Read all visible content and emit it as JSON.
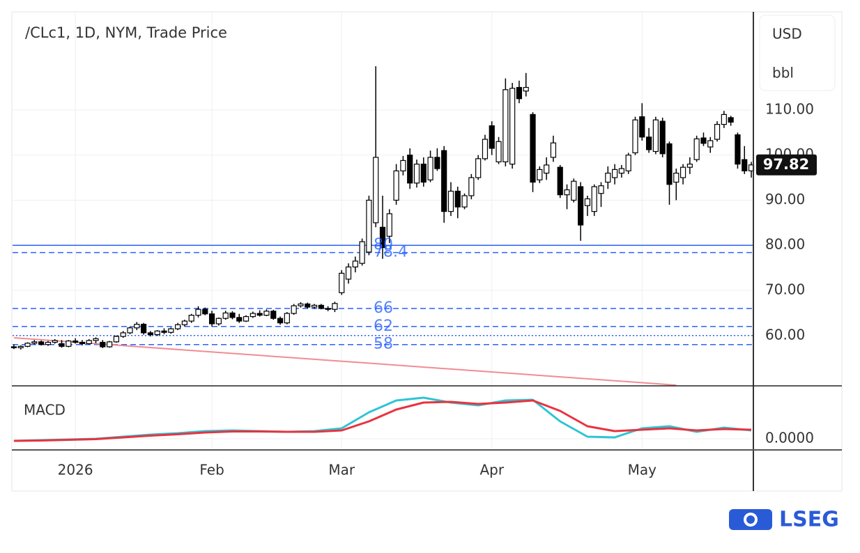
{
  "chart_data": {
    "type": "candlestick",
    "title": "/CLc1, 1D, NYM, Trade Price",
    "unit": "USD",
    "unit_sub": "bbl",
    "brand": "LSEG",
    "up_color": "#ffffff",
    "down_color": "#000000",
    "wick_color": "#000000",
    "grid": true,
    "ylim": [
      49,
      131.6
    ],
    "yticks": [
      {
        "value": 60,
        "label": "60.00"
      },
      {
        "value": 70,
        "label": "70.00"
      },
      {
        "value": 80,
        "label": "80.00"
      },
      {
        "value": 90,
        "label": "90.00"
      },
      {
        "value": 100,
        "label": "100.00"
      },
      {
        "value": 110,
        "label": "110.00"
      }
    ],
    "xlim": [
      -0.2,
      108.2
    ],
    "xticks": [
      {
        "value": 9,
        "label": "2026"
      },
      {
        "value": 29,
        "label": "Feb"
      },
      {
        "value": 48,
        "label": "Mar"
      },
      {
        "value": 70,
        "label": "Apr"
      },
      {
        "value": 92,
        "label": "May"
      }
    ],
    "last_price": 97.82,
    "levels": [
      {
        "value": 80,
        "style": "solid",
        "show_label": true
      },
      {
        "value": 78.4,
        "style": "dashed",
        "show_label": true
      },
      {
        "value": 66,
        "style": "dashed",
        "show_label": true
      },
      {
        "value": 62,
        "style": "dashed",
        "show_label": true
      },
      {
        "value": 60,
        "style": "dotted",
        "show_label": false
      },
      {
        "value": 58,
        "style": "dashed",
        "show_label": true
      }
    ],
    "level_color": "#2962ff",
    "trendline": {
      "x": [
        0,
        97
      ],
      "values": [
        59.5,
        49
      ],
      "color": "#f28b94"
    },
    "candles": [
      [
        57.5,
        58,
        57,
        57.3
      ],
      [
        57.3,
        57.8,
        56.9,
        57.6
      ],
      [
        57.6,
        58.5,
        57.4,
        58.3
      ],
      [
        58.3,
        59,
        58,
        58.6
      ],
      [
        58.6,
        58.9,
        57.8,
        58
      ],
      [
        58,
        58.8,
        57.7,
        58.5
      ],
      [
        58.5,
        59.2,
        58.2,
        58.9
      ],
      [
        58.2,
        59,
        57.3,
        57.6
      ],
      [
        57.6,
        59,
        57.4,
        58.8
      ],
      [
        58.8,
        59.4,
        58.2,
        58.5
      ],
      [
        58.5,
        59,
        57.8,
        58.2
      ],
      [
        58.2,
        59.2,
        58,
        58.9
      ],
      [
        58.9,
        59.6,
        58.3,
        59.3
      ],
      [
        58.5,
        59,
        57.2,
        57.5
      ],
      [
        57.5,
        58.8,
        57.3,
        58.6
      ],
      [
        58.6,
        60,
        58.4,
        59.8
      ],
      [
        59.8,
        61,
        59.5,
        60.6
      ],
      [
        60.6,
        62,
        60.3,
        61.7
      ],
      [
        61.7,
        63,
        61.2,
        62.5
      ],
      [
        62.5,
        62.8,
        60.2,
        60.6
      ],
      [
        60.6,
        61,
        59.8,
        60.2
      ],
      [
        60.2,
        61.2,
        59.9,
        61
      ],
      [
        61,
        61.6,
        60.3,
        60.7
      ],
      [
        60.7,
        61.8,
        60.4,
        61.5
      ],
      [
        61.5,
        62.8,
        61.2,
        62.4
      ],
      [
        62.4,
        63.5,
        62,
        63.2
      ],
      [
        63.2,
        64.8,
        62.8,
        64.5
      ],
      [
        64.5,
        66.5,
        64,
        65.8
      ],
      [
        65.8,
        66.2,
        64.5,
        64.8
      ],
      [
        64.8,
        65.5,
        62,
        62.6
      ],
      [
        62.6,
        64,
        62.2,
        63.8
      ],
      [
        63.8,
        65.5,
        63.5,
        65
      ],
      [
        65,
        65.4,
        63.6,
        64
      ],
      [
        64,
        64.8,
        62.8,
        63.2
      ],
      [
        63.2,
        64.5,
        63,
        64.2
      ],
      [
        64.2,
        65.3,
        63.9,
        64.9
      ],
      [
        64.9,
        65.6,
        64.2,
        64.5
      ],
      [
        64.5,
        65.8,
        64.3,
        65.4
      ],
      [
        65.4,
        65.7,
        63.5,
        63.8
      ],
      [
        63.8,
        64.2,
        62.4,
        62.8
      ],
      [
        62.8,
        65.2,
        62.5,
        64.9
      ],
      [
        64.9,
        67,
        64.6,
        66.6
      ],
      [
        66.6,
        67.4,
        66.2,
        67
      ],
      [
        67,
        67.3,
        66,
        66.3
      ],
      [
        66.3,
        67,
        65.9,
        66.7
      ],
      [
        66.7,
        67,
        65.8,
        66
      ],
      [
        66,
        66.5,
        65.4,
        65.8
      ],
      [
        65.8,
        67.5,
        65.2,
        67.1
      ],
      [
        69.5,
        74.5,
        69,
        73.8
      ],
      [
        72.5,
        76,
        71.5,
        75.2
      ],
      [
        75.2,
        77.5,
        74,
        76.5
      ],
      [
        76,
        81.5,
        75.5,
        80.8
      ],
      [
        78.5,
        91,
        77.8,
        90
      ],
      [
        85,
        119.7,
        84,
        99.5
      ],
      [
        84,
        91,
        77,
        79.5
      ],
      [
        82,
        88,
        80.5,
        87
      ],
      [
        90,
        98,
        89,
        96.5
      ],
      [
        96.5,
        99.8,
        95.5,
        98.8
      ],
      [
        100,
        101.5,
        92.5,
        93.8
      ],
      [
        93.8,
        99,
        92.8,
        98
      ],
      [
        98,
        99.5,
        93,
        94
      ],
      [
        94.5,
        101,
        94,
        99.5
      ],
      [
        99.5,
        101.5,
        96.5,
        97
      ],
      [
        101,
        102,
        85,
        87.5
      ],
      [
        87.5,
        94,
        86.5,
        92
      ],
      [
        92,
        93,
        86,
        88.5
      ],
      [
        88.5,
        91.5,
        88,
        91
      ],
      [
        91,
        95.8,
        90.2,
        95
      ],
      [
        95,
        100,
        94.5,
        99.2
      ],
      [
        99.2,
        104.5,
        98.8,
        103.5
      ],
      [
        106.5,
        107.5,
        100,
        101.5
      ],
      [
        98.5,
        104,
        98,
        103
      ],
      [
        98.5,
        117,
        97.5,
        114.5
      ],
      [
        98,
        116,
        97,
        114.8
      ],
      [
        115,
        116.5,
        111.5,
        112.5
      ],
      [
        114.2,
        118.2,
        113,
        115
      ],
      [
        109,
        109.5,
        91.8,
        94
      ],
      [
        94.5,
        97.5,
        93.8,
        96.8
      ],
      [
        96,
        99.5,
        94.5,
        97.8
      ],
      [
        99.5,
        104.3,
        98.5,
        102.7
      ],
      [
        97.3,
        97.8,
        90.5,
        91.2
      ],
      [
        91.2,
        93.5,
        88,
        92.3
      ],
      [
        90,
        94.8,
        89.5,
        94.2
      ],
      [
        93,
        94,
        81,
        84.5
      ],
      [
        88.8,
        91,
        86.5,
        90.3
      ],
      [
        87.5,
        93.5,
        86.5,
        93
      ],
      [
        91.5,
        94,
        88.5,
        93.2
      ],
      [
        94,
        97.5,
        92.5,
        96
      ],
      [
        95,
        98,
        93.5,
        96.8
      ],
      [
        96,
        97.8,
        95,
        97
      ],
      [
        96.5,
        100.5,
        95.8,
        100
      ],
      [
        100.5,
        108.5,
        100,
        107.8
      ],
      [
        108.5,
        111.5,
        103.2,
        104
      ],
      [
        104,
        106,
        100.5,
        101.2
      ],
      [
        100.8,
        108.5,
        100.2,
        107.8
      ],
      [
        107.5,
        108.3,
        99.5,
        100.3
      ],
      [
        102.5,
        103,
        89,
        93.5
      ],
      [
        94,
        97,
        90,
        96
      ],
      [
        95,
        98,
        93.5,
        97.3
      ],
      [
        97.3,
        99.5,
        95.8,
        98
      ],
      [
        99,
        104.3,
        98.5,
        103.6
      ],
      [
        103.8,
        105,
        102,
        102.6
      ],
      [
        101.8,
        104,
        100.5,
        103.2
      ],
      [
        103.5,
        107.5,
        103,
        106.8
      ],
      [
        106.8,
        109.8,
        106,
        109
      ],
      [
        108.3,
        108.7,
        106.5,
        107.3
      ],
      [
        104.5,
        105,
        97,
        98
      ],
      [
        99,
        102,
        95.8,
        96.5
      ],
      [
        96.5,
        98.5,
        95,
        97.82
      ]
    ],
    "macd": {
      "type": "line",
      "title": "MACD",
      "ylim": [
        -1.5,
        7.5
      ],
      "yticks": [
        {
          "value": 0,
          "label": "0.0000"
        }
      ],
      "x": [
        0,
        4,
        8,
        12,
        16,
        20,
        24,
        28,
        32,
        36,
        40,
        44,
        48,
        52,
        56,
        60,
        64,
        68,
        72,
        76,
        80,
        84,
        88,
        92,
        96,
        100,
        104,
        108
      ],
      "series": [
        {
          "color": "#2ec4d6",
          "values": [
            -0.3,
            -0.2,
            -0.1,
            0,
            0.3,
            0.6,
            0.8,
            1.1,
            1.2,
            1.1,
            1.0,
            1.1,
            1.5,
            3.8,
            5.5,
            5.9,
            5.2,
            4.8,
            5.5,
            5.6,
            2.5,
            0.3,
            0.2,
            1.5,
            1.8,
            1.0,
            1.6,
            1.2
          ]
        },
        {
          "color": "#e8333f",
          "values": [
            -0.3,
            -0.25,
            -0.15,
            -0.05,
            0.2,
            0.45,
            0.65,
            0.9,
            1.05,
            1.05,
            1.0,
            1.0,
            1.2,
            2.5,
            4.2,
            5.2,
            5.3,
            5.0,
            5.2,
            5.5,
            4.0,
            1.8,
            1.1,
            1.3,
            1.5,
            1.2,
            1.4,
            1.3
          ]
        }
      ]
    }
  }
}
